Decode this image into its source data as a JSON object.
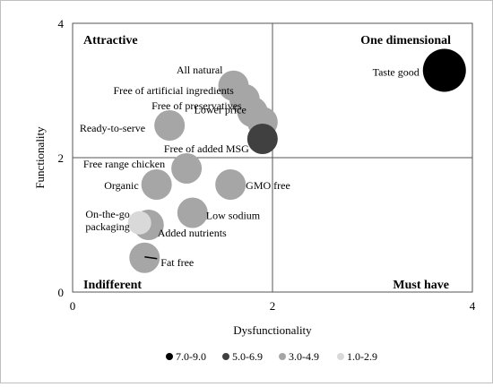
{
  "chart_data": {
    "type": "bubble-scatter",
    "xlabel": "Dysfunctionality",
    "ylabel": "Functionality",
    "xlim": [
      0,
      4
    ],
    "ylim": [
      0,
      4
    ],
    "x_ticks": [
      "0",
      "2",
      "4"
    ],
    "y_ticks": [
      "0",
      "2",
      "4"
    ],
    "grid": "quadrant lines at x = 2 and y = 2",
    "quadrants": {
      "top_left": "Attractive",
      "top_right": "One dimensional",
      "bottom_left": "Indifferent",
      "bottom_right": "Must have"
    },
    "legend_position": "bottom",
    "legend": [
      {
        "label": "7.0-9.0",
        "color": "#000000"
      },
      {
        "label": "5.0-6.9",
        "color": "#404040"
      },
      {
        "label": "3.0-4.9",
        "color": "#a6a6a6"
      },
      {
        "label": "1.0-2.9",
        "color": "#d9d9d9"
      }
    ],
    "points": [
      {
        "label": "Taste good",
        "x": 3.72,
        "y": 3.3,
        "group": "7.0-9.0"
      },
      {
        "label": "All natural",
        "x": 1.61,
        "y": 3.07,
        "group": "3.0-4.9"
      },
      {
        "label": "Free of artificial ingredients",
        "x": 1.72,
        "y": 2.87,
        "group": "3.0-4.9"
      },
      {
        "label": "Free of preservatives",
        "x": 1.8,
        "y": 2.68,
        "group": "3.0-4.9"
      },
      {
        "label": "Lower price",
        "x": 1.9,
        "y": 2.53,
        "group": "3.0-4.9"
      },
      {
        "label": "Free of added MSG",
        "x": 1.9,
        "y": 2.28,
        "group": "5.0-6.9"
      },
      {
        "label": "Ready-to-serve",
        "x": 0.97,
        "y": 2.48,
        "group": "3.0-4.9"
      },
      {
        "label": "Free range chicken",
        "x": 1.14,
        "y": 1.84,
        "group": "3.0-4.9"
      },
      {
        "label": "Organic",
        "x": 0.84,
        "y": 1.6,
        "group": "3.0-4.9"
      },
      {
        "label": "GMO free",
        "x": 1.58,
        "y": 1.6,
        "group": "3.0-4.9"
      },
      {
        "label": "Low sodium",
        "x": 1.2,
        "y": 1.18,
        "group": "3.0-4.9"
      },
      {
        "label": "Added nutrients",
        "x": 0.76,
        "y": 1.0,
        "group": "3.0-4.9"
      },
      {
        "label": "On-the-go packaging",
        "x": 0.67,
        "y": 1.03,
        "group": "1.0-2.9"
      },
      {
        "label": "Fat free",
        "x": 0.72,
        "y": 0.51,
        "group": "3.0-4.9"
      }
    ]
  }
}
